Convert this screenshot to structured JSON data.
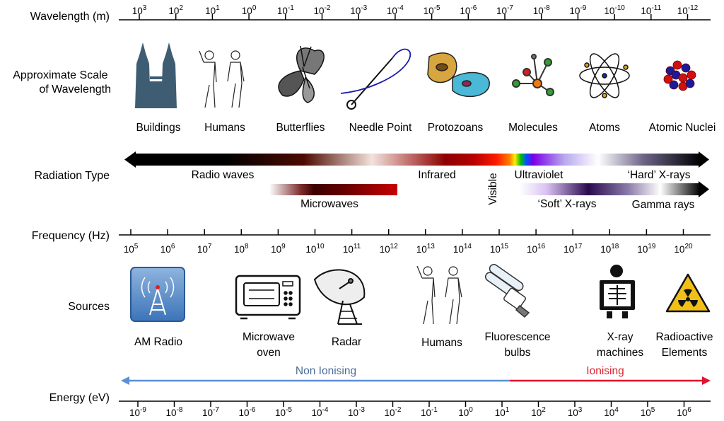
{
  "rows": {
    "wavelength": "Wavelength (m)",
    "scale": [
      "Approximate Scale",
      "of Wavelength"
    ],
    "radiation": "Radiation Type",
    "frequency": "Frequency (Hz)",
    "sources": "Sources",
    "energy": "Energy (eV)"
  },
  "wavelength_exponents": [
    "3",
    "2",
    "1",
    "0",
    "-1",
    "-2",
    "-3",
    "-4",
    "-5",
    "-6",
    "-7",
    "-8",
    "-9",
    "-10",
    "-11",
    "-12"
  ],
  "scale_items": [
    "Buildings",
    "Humans",
    "Butterflies",
    "Needle Point",
    "Protozoans",
    "Molecules",
    "Atoms",
    "Atomic Nuclei"
  ],
  "radiation_labels": {
    "radio": "Radio waves",
    "infrared": "Infrared",
    "visible": "Visible",
    "ultraviolet": "Ultraviolet",
    "hard_xrays": "‘Hard’ X-rays",
    "microwaves": "Microwaves",
    "soft_xrays": "‘Soft’ X-rays",
    "gamma": "Gamma rays"
  },
  "frequency_exponents": [
    "5",
    "6",
    "7",
    "8",
    "9",
    "10",
    "11",
    "12",
    "13",
    "14",
    "15",
    "16",
    "17",
    "18",
    "19",
    "20"
  ],
  "sources": [
    {
      "id": "am-radio",
      "lines": [
        "AM Radio"
      ]
    },
    {
      "id": "microwave-oven",
      "lines": [
        "Microwave",
        "oven"
      ]
    },
    {
      "id": "radar",
      "lines": [
        "Radar"
      ]
    },
    {
      "id": "humans",
      "lines": [
        "Humans"
      ]
    },
    {
      "id": "fluorescence",
      "lines": [
        "Fluorescence",
        "bulbs"
      ]
    },
    {
      "id": "xray",
      "lines": [
        "X-ray",
        "machines"
      ]
    },
    {
      "id": "radioactive",
      "lines": [
        "Radioactive",
        "Elements"
      ]
    }
  ],
  "ionising": {
    "non": "Non Ionising",
    "ion": "Ionising"
  },
  "energy_exponents": [
    "-9",
    "-8",
    "-7",
    "-6",
    "-5",
    "-4",
    "-3",
    "-2",
    "-1",
    "0",
    "1",
    "2",
    "3",
    "4",
    "5",
    "6"
  ],
  "colors": {
    "non_ionising": "#5b8fd6",
    "ionising": "#e0142b",
    "text_non": "#4a6c9a",
    "text_ion": "#d9262e"
  }
}
